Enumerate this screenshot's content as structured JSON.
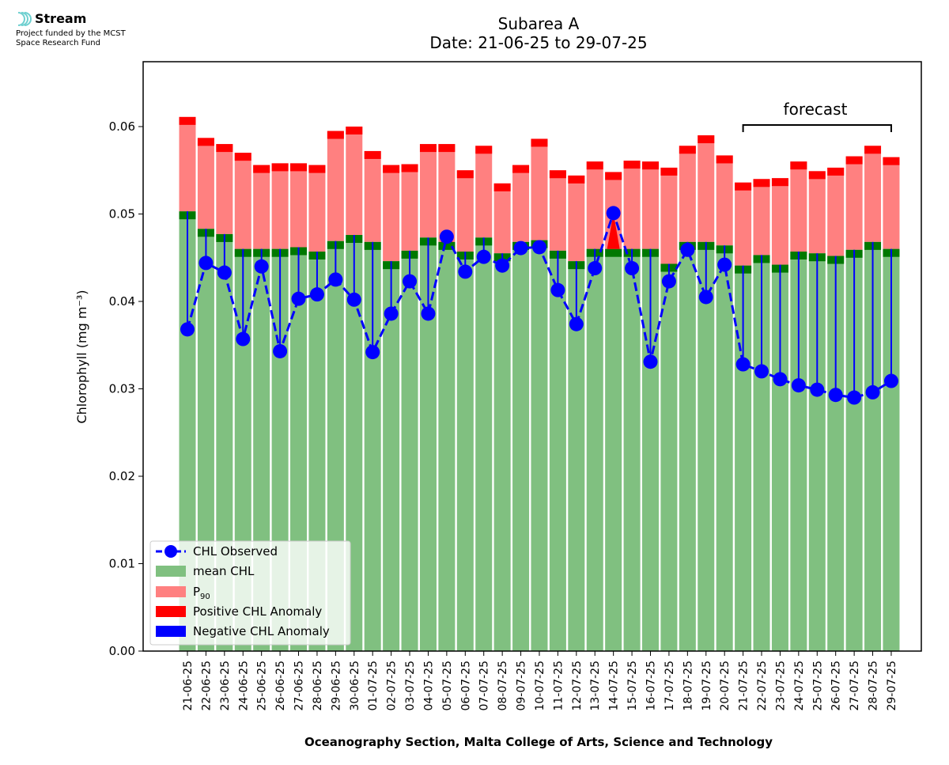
{
  "header": {
    "brand": "Stream",
    "funded_line1": "Project funded by the MCST",
    "funded_line2": "Space Research Fund"
  },
  "chart_data": {
    "type": "bar",
    "title": "Subarea A",
    "subtitle": "Date: 21-06-25 to 29-07-25",
    "xlabel": "Oceanography Section, Malta College of Arts, Science and Technology",
    "ylabel": "Chlorophyll (mg m⁻³)",
    "ylim": [
      0,
      0.0675
    ],
    "yticks": [
      "0.00",
      "0.01",
      "0.02",
      "0.03",
      "0.04",
      "0.05",
      "0.06"
    ],
    "grid": false,
    "legend_position": "lower-left",
    "forecast_label": "forecast",
    "forecast_range": [
      "21-07-25",
      "29-07-25"
    ],
    "legend": [
      {
        "key": "observed",
        "label": "CHL Observed"
      },
      {
        "key": "mean",
        "label": "mean CHL"
      },
      {
        "key": "p90",
        "label": "P",
        "sub": "90"
      },
      {
        "key": "pos",
        "label": "Positive CHL Anomaly"
      },
      {
        "key": "neg",
        "label": "Negative CHL Anomaly"
      }
    ],
    "colors": {
      "mean": "#80c080",
      "mean_cap": "#007800",
      "p90": "#ff8080",
      "p90_cap": "#ff0000",
      "observed": "#0000ff",
      "positive": "#ff0000",
      "negative": "#0000ff"
    },
    "categories": [
      "21-06-25",
      "22-06-25",
      "23-06-25",
      "24-06-25",
      "25-06-25",
      "26-06-25",
      "27-06-25",
      "28-06-25",
      "29-06-25",
      "30-06-25",
      "01-07-25",
      "02-07-25",
      "03-07-25",
      "04-07-25",
      "05-07-25",
      "06-07-25",
      "07-07-25",
      "08-07-25",
      "09-07-25",
      "10-07-25",
      "11-07-25",
      "12-07-25",
      "13-07-25",
      "14-07-25",
      "15-07-25",
      "16-07-25",
      "17-07-25",
      "18-07-25",
      "19-07-25",
      "20-07-25",
      "21-07-25",
      "22-07-25",
      "23-07-25",
      "24-07-25",
      "25-07-25",
      "26-07-25",
      "27-07-25",
      "28-07-25",
      "29-07-25"
    ],
    "series": [
      {
        "name": "mean CHL",
        "key": "mean",
        "values": [
          0.0503,
          0.0483,
          0.0477,
          0.046,
          0.046,
          0.046,
          0.0462,
          0.0457,
          0.0469,
          0.0476,
          0.0468,
          0.0446,
          0.0458,
          0.0473,
          0.0468,
          0.0457,
          0.0473,
          0.0455,
          0.0468,
          0.047,
          0.0458,
          0.0446,
          0.046,
          0.046,
          0.046,
          0.046,
          0.0443,
          0.0468,
          0.0468,
          0.0464,
          0.0441,
          0.0453,
          0.0442,
          0.0457,
          0.0455,
          0.0452,
          0.0459,
          0.0468,
          0.046
        ]
      },
      {
        "name": "P90",
        "key": "p90",
        "values": [
          0.0611,
          0.0587,
          0.058,
          0.057,
          0.0556,
          0.0558,
          0.0558,
          0.0556,
          0.0595,
          0.06,
          0.0572,
          0.0556,
          0.0557,
          0.058,
          0.058,
          0.055,
          0.0578,
          0.0535,
          0.0556,
          0.0586,
          0.055,
          0.0544,
          0.056,
          0.0548,
          0.0561,
          0.056,
          0.0553,
          0.0578,
          0.059,
          0.0567,
          0.0536,
          0.054,
          0.0541,
          0.056,
          0.0549,
          0.0553,
          0.0566,
          0.0578,
          0.0565
        ]
      },
      {
        "name": "CHL Observed",
        "key": "observed",
        "values": [
          0.0368,
          0.0444,
          0.0433,
          0.0357,
          0.044,
          0.0343,
          0.0403,
          0.0408,
          0.0425,
          0.0402,
          0.0342,
          0.0386,
          0.0423,
          0.0386,
          0.0474,
          0.0434,
          0.0451,
          0.0441,
          0.0461,
          0.0462,
          0.0413,
          0.0374,
          0.0438,
          0.0501,
          0.0438,
          0.0331,
          0.0423,
          0.0459,
          0.0405,
          0.0442,
          0.0328,
          0.032,
          0.0311,
          0.0304,
          0.0299,
          0.0293,
          0.029,
          0.0296,
          0.0309
        ]
      }
    ]
  }
}
